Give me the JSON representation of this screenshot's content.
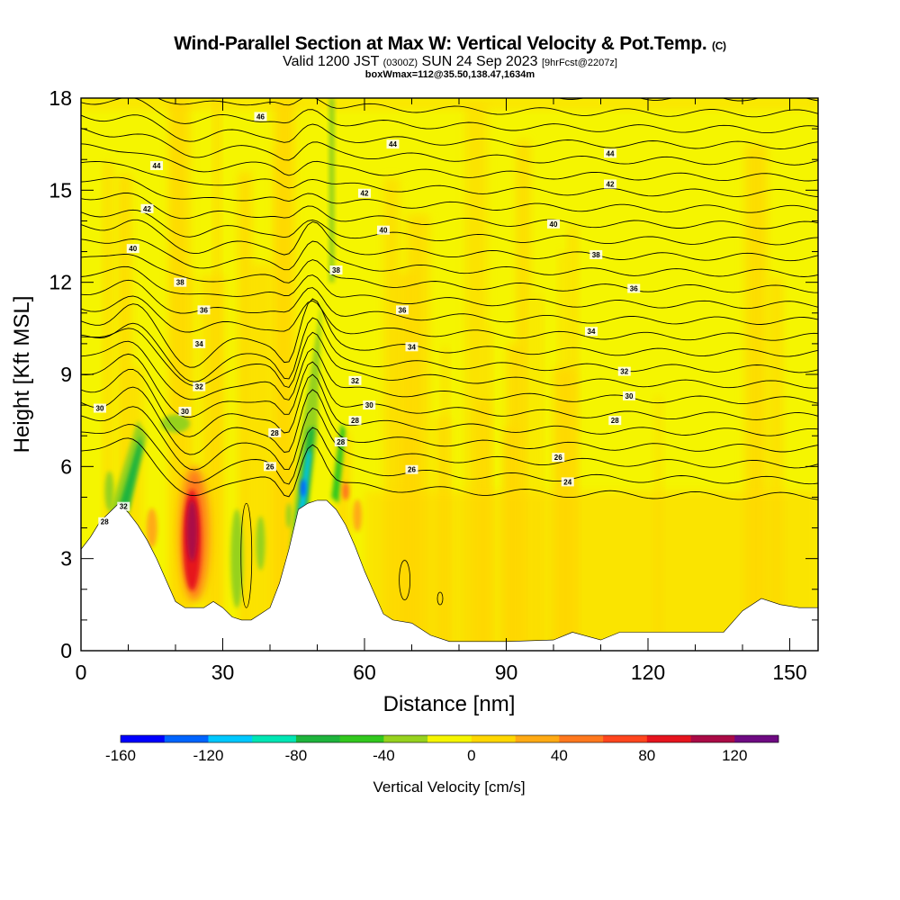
{
  "header": {
    "title_main": "Wind-Parallel Section at Max W: Vertical Velocity & Pot.Temp.",
    "title_unit": "(C)",
    "valid_a": "Valid 1200 JST",
    "valid_b": "(0300Z)",
    "valid_c": "SUN 24 Sep 2023",
    "valid_d": "[9hrFcst@2207z]",
    "box_info": "boxWmax=112@35.50,138.47,1634m"
  },
  "chart_data": {
    "type": "heatmap",
    "title": "Wind-Parallel Section at Max W: Vertical Velocity & Pot.Temp. (C)",
    "xlabel": "Distance [nm]",
    "ylabel": "Height [Kft MSL]",
    "xlim": [
      0,
      156
    ],
    "ylim": [
      0,
      18
    ],
    "x_ticks": [
      "0",
      "30",
      "60",
      "90",
      "120",
      "150"
    ],
    "y_ticks": [
      "0",
      "3",
      "6",
      "9",
      "12",
      "15",
      "18"
    ],
    "terrain": [
      [
        0,
        3.3
      ],
      [
        2,
        3.7
      ],
      [
        4,
        4.2
      ],
      [
        6,
        4.5
      ],
      [
        8,
        4.8
      ],
      [
        10,
        4.5
      ],
      [
        12,
        4.1
      ],
      [
        14,
        3.6
      ],
      [
        16,
        3.0
      ],
      [
        18,
        2.3
      ],
      [
        20,
        1.6
      ],
      [
        22,
        1.4
      ],
      [
        24,
        1.4
      ],
      [
        26,
        1.4
      ],
      [
        28,
        1.6
      ],
      [
        30,
        1.4
      ],
      [
        32,
        1.1
      ],
      [
        34,
        1.0
      ],
      [
        36,
        1.0
      ],
      [
        38,
        1.2
      ],
      [
        40,
        1.4
      ],
      [
        42,
        2.2
      ],
      [
        44,
        3.3
      ],
      [
        46,
        4.6
      ],
      [
        48,
        4.8
      ],
      [
        50,
        4.9
      ],
      [
        52,
        4.9
      ],
      [
        54,
        4.6
      ],
      [
        56,
        4.1
      ],
      [
        58,
        3.4
      ],
      [
        60,
        2.6
      ],
      [
        62,
        1.9
      ],
      [
        64,
        1.2
      ],
      [
        66,
        1.0
      ],
      [
        70,
        0.9
      ],
      [
        74,
        0.5
      ],
      [
        78,
        0.3
      ],
      [
        90,
        0.3
      ],
      [
        100,
        0.35
      ],
      [
        104,
        0.6
      ],
      [
        110,
        0.35
      ],
      [
        114,
        0.6
      ],
      [
        136,
        0.6
      ],
      [
        140,
        1.3
      ],
      [
        144,
        1.7
      ],
      [
        148,
        1.5
      ],
      [
        152,
        1.4
      ],
      [
        156,
        1.4
      ]
    ],
    "theta_labels": [
      {
        "x": 38,
        "y": 17.4,
        "label": "46"
      },
      {
        "x": 66,
        "y": 16.5,
        "label": "44"
      },
      {
        "x": 112,
        "y": 16.2,
        "label": "44"
      },
      {
        "x": 16,
        "y": 15.8,
        "label": "44"
      },
      {
        "x": 60,
        "y": 14.9,
        "label": "42"
      },
      {
        "x": 112,
        "y": 15.2,
        "label": "42"
      },
      {
        "x": 14,
        "y": 14.4,
        "label": "42"
      },
      {
        "x": 64,
        "y": 13.7,
        "label": "40"
      },
      {
        "x": 100,
        "y": 13.9,
        "label": "40"
      },
      {
        "x": 11,
        "y": 13.1,
        "label": "40"
      },
      {
        "x": 54,
        "y": 12.4,
        "label": "38"
      },
      {
        "x": 109,
        "y": 12.9,
        "label": "38"
      },
      {
        "x": 21,
        "y": 12.0,
        "label": "38"
      },
      {
        "x": 68,
        "y": 11.1,
        "label": "36"
      },
      {
        "x": 117,
        "y": 11.8,
        "label": "36"
      },
      {
        "x": 26,
        "y": 11.1,
        "label": "36"
      },
      {
        "x": 70,
        "y": 9.9,
        "label": "34"
      },
      {
        "x": 108,
        "y": 10.4,
        "label": "34"
      },
      {
        "x": 25,
        "y": 10.0,
        "label": "34"
      },
      {
        "x": 58,
        "y": 8.8,
        "label": "32"
      },
      {
        "x": 115,
        "y": 9.1,
        "label": "32"
      },
      {
        "x": 25,
        "y": 8.6,
        "label": "32"
      },
      {
        "x": 61,
        "y": 8.0,
        "label": "30"
      },
      {
        "x": 116,
        "y": 8.3,
        "label": "30"
      },
      {
        "x": 22,
        "y": 7.8,
        "label": "30"
      },
      {
        "x": 4,
        "y": 7.9,
        "label": "30"
      },
      {
        "x": 58,
        "y": 7.5,
        "label": "28"
      },
      {
        "x": 113,
        "y": 7.5,
        "label": "28"
      },
      {
        "x": 41,
        "y": 7.1,
        "label": "28"
      },
      {
        "x": 55,
        "y": 6.8,
        "label": "28"
      },
      {
        "x": 101,
        "y": 6.3,
        "label": "26"
      },
      {
        "x": 40,
        "y": 6.0,
        "label": "26"
      },
      {
        "x": 70,
        "y": 5.9,
        "label": "26"
      },
      {
        "x": 103,
        "y": 5.5,
        "label": "24"
      },
      {
        "x": 9,
        "y": 4.7,
        "label": "32"
      },
      {
        "x": 5,
        "y": 4.2,
        "label": "28"
      }
    ],
    "colorbar": {
      "label": "Vertical Velocity [cm/s]",
      "tick_labels": [
        "-160",
        "-120",
        "-80",
        "-40",
        "0",
        "40",
        "80",
        "120"
      ],
      "min": -160,
      "max": 140,
      "step": 20,
      "colors": [
        "#0000ff",
        "#0064ff",
        "#00c8ff",
        "#00e6b4",
        "#1eb43c",
        "#32c81e",
        "#96d21e",
        "#f5f500",
        "#ffd700",
        "#ffaa14",
        "#ff781e",
        "#ff461e",
        "#e6141e",
        "#aa0a46",
        "#6e0a82"
      ]
    }
  }
}
